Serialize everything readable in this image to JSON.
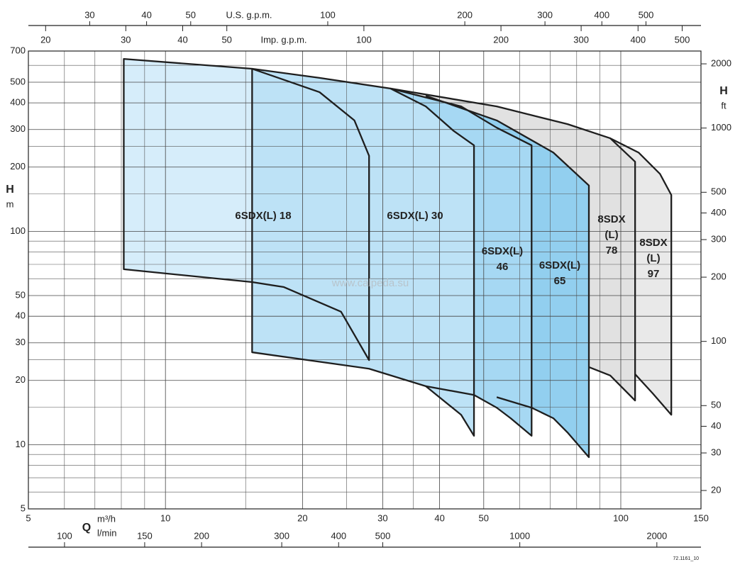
{
  "chart_data": {
    "type": "region",
    "log_x": true,
    "log_y": true,
    "grid": true,
    "x_symbol": "Q",
    "x_unit": "m³/h",
    "y_symbol": "H",
    "y_unit": "m",
    "xlim": [
      5,
      150
    ],
    "xticks": [
      5,
      10,
      20,
      30,
      40,
      50,
      100,
      150
    ],
    "xgrid": [
      6,
      7,
      8,
      9,
      15,
      25,
      35,
      60,
      70,
      80,
      90
    ],
    "ylim": [
      5,
      700
    ],
    "yticks": [
      5,
      10,
      20,
      30,
      40,
      50,
      100,
      200,
      300,
      400,
      500,
      700
    ],
    "ygrid": [
      6,
      7,
      8,
      9,
      15,
      25,
      60,
      70,
      80,
      90,
      150,
      250,
      600
    ],
    "us_gpm_label": "U.S. g.p.m.",
    "us_gpm_lim": [
      22.0,
      660.4
    ],
    "us_gpm_ticks": [
      30,
      40,
      50,
      100,
      200,
      300,
      400,
      500
    ],
    "imp_gpm_label": "Imp. g.p.m.",
    "imp_gpm_lim": [
      18.33,
      549.9
    ],
    "imp_gpm_ticks": [
      20,
      30,
      40,
      50,
      100,
      200,
      300,
      400,
      500
    ],
    "l_min_label": "l/min",
    "l_min_lim": [
      83.3,
      2500
    ],
    "l_min_ticks": [
      100,
      150,
      200,
      300,
      400,
      500,
      1000,
      2000
    ],
    "y2_symbol": "H",
    "y2_unit": "ft",
    "y2lim": [
      16.4,
      2296.6
    ],
    "y2ticks": [
      20,
      30,
      40,
      50,
      100,
      200,
      300,
      400,
      500,
      1000,
      2000
    ],
    "watermark": "www.calpeda.su",
    "code": "72.1161_10",
    "series": [
      {
        "name": [
          "6SDX(L) 18"
        ],
        "color": "#d6edfa",
        "x": [
          8.1,
          15.5,
          21.8,
          26.0,
          28.0,
          28.0,
          24.3,
          18.2,
          15.5,
          8.1
        ],
        "y": [
          643,
          578,
          449,
          331,
          226,
          24.9,
          42,
          54.8,
          57.8,
          66.4
        ]
      },
      {
        "name": [
          "6SDX(L) 30"
        ],
        "color": "#bde2f6",
        "x": [
          15.5,
          21.8,
          31.2,
          37.3,
          43.0,
          47.6,
          47.6,
          44.6,
          37.3,
          28.0,
          15.5
        ],
        "y": [
          578,
          524,
          467,
          385,
          295,
          253,
          11.0,
          13.8,
          18.8,
          22.7,
          27.1
        ]
      },
      {
        "name": [
          "6SDX(L)",
          "46"
        ],
        "color": "#a6d8f3",
        "x": [
          31.2,
          44.6,
          53.4,
          63.7,
          63.7,
          57.3,
          53.4,
          47.6,
          37.3
        ],
        "y": [
          467,
          385,
          306,
          253,
          11.0,
          13.3,
          14.9,
          17.1,
          18.8
        ]
      },
      {
        "name": [
          "6SDX(L)",
          "65"
        ],
        "color": "#92cfef",
        "x": [
          37.3,
          53.4,
          71.1,
          85.1,
          85.1,
          76.4,
          71.1,
          63.7,
          53.4
        ],
        "y": [
          432,
          331,
          234,
          164,
          8.73,
          11.4,
          13.3,
          14.9,
          16.7
        ]
      },
      {
        "name": [
          "8SDX",
          "(L)",
          "78"
        ],
        "color": "#e1e1e1",
        "x": [
          31.2,
          53.4,
          76.4,
          94.8,
          107.5,
          107.5,
          94.8,
          85.1
        ],
        "y": [
          467,
          385,
          318,
          273,
          212,
          16.1,
          21.1,
          23.1
        ]
      },
      {
        "name": [
          "8SDX",
          "(L)",
          "97"
        ],
        "color": "#e9e9e9",
        "x": [
          94.8,
          109.4,
          121.9,
          129.1,
          129.1,
          117.5,
          107.5
        ],
        "y": [
          273,
          234,
          186,
          148,
          13.8,
          17.4,
          21.4
        ]
      }
    ]
  }
}
